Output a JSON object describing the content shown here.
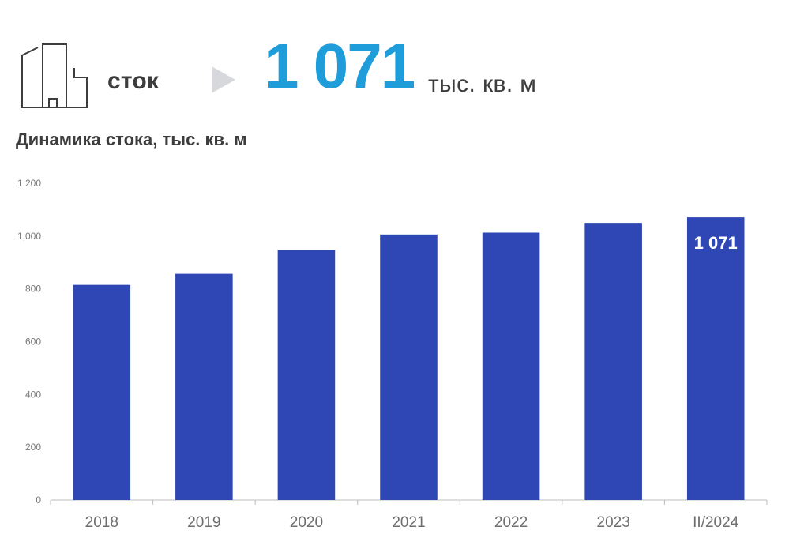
{
  "header": {
    "stock_label": "сток",
    "total_value": "1 071",
    "total_unit": "тыс. кв. м",
    "icons": {
      "building": "building-icon",
      "arrow": "triangle-right-icon"
    }
  },
  "chart_data": {
    "type": "bar",
    "title": "Динамика стока, тыс. кв. м",
    "categories": [
      "2018",
      "2019",
      "2020",
      "2021",
      "2022",
      "2023",
      "II/2024"
    ],
    "values": [
      815,
      857,
      948,
      1006,
      1013,
      1050,
      1071
    ],
    "yticks": [
      "0",
      "200",
      "400",
      "600",
      "800",
      "1,000",
      "1,200"
    ],
    "ylim": [
      0,
      1200
    ],
    "data_label": {
      "index": 6,
      "text": "1 071"
    },
    "colors": {
      "bar": "#2f47b4",
      "axis": "#bdbdbd",
      "tick": "#7a7a7a"
    },
    "grid": false,
    "legend": "none"
  }
}
